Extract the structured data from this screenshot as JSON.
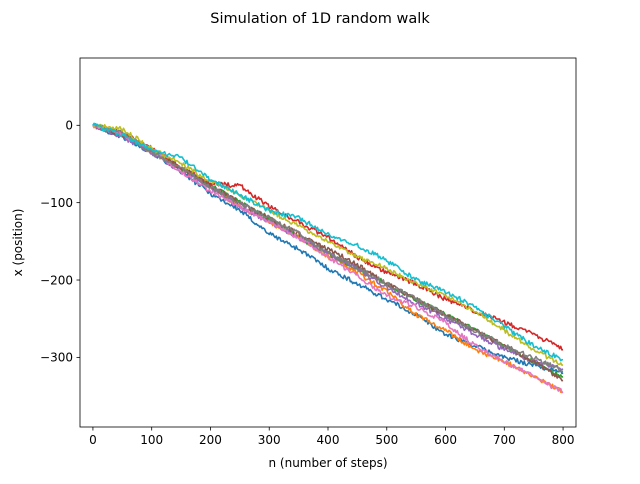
{
  "chart_data": {
    "type": "line",
    "title": "Simulation of 1D random walk",
    "xlabel": "n (number of steps)",
    "ylabel": "x (position)",
    "xlim": [
      -22,
      822
    ],
    "ylim": [
      -390,
      87
    ],
    "xticks": [
      0,
      100,
      200,
      300,
      400,
      500,
      600,
      700,
      800
    ],
    "yticks": [
      0,
      -100,
      -200,
      -300
    ],
    "xtick_labels": [
      "0",
      "100",
      "200",
      "300",
      "400",
      "500",
      "600",
      "700",
      "800"
    ],
    "ytick_labels": [
      "0",
      "−100",
      "−200",
      "−300"
    ],
    "grid": false,
    "legend": "none",
    "series": [
      {
        "color": "#1f77b4",
        "points": [
          [
            0,
            0
          ],
          [
            50,
            -15
          ],
          [
            100,
            -35
          ],
          [
            150,
            -60
          ],
          [
            200,
            -88
          ],
          [
            250,
            -110
          ],
          [
            300,
            -140
          ],
          [
            350,
            -160
          ],
          [
            400,
            -185
          ],
          [
            450,
            -205
          ],
          [
            500,
            -225
          ],
          [
            550,
            -245
          ],
          [
            600,
            -270
          ],
          [
            650,
            -285
          ],
          [
            700,
            -300
          ],
          [
            750,
            -310
          ],
          [
            800,
            -320
          ]
        ]
      },
      {
        "color": "#ff7f0e",
        "points": [
          [
            0,
            0
          ],
          [
            50,
            -10
          ],
          [
            100,
            -35
          ],
          [
            150,
            -55
          ],
          [
            200,
            -80
          ],
          [
            250,
            -105
          ],
          [
            300,
            -125
          ],
          [
            350,
            -145
          ],
          [
            400,
            -170
          ],
          [
            450,
            -190
          ],
          [
            500,
            -215
          ],
          [
            550,
            -245
          ],
          [
            600,
            -265
          ],
          [
            650,
            -290
          ],
          [
            700,
            -305
          ],
          [
            750,
            -325
          ],
          [
            800,
            -345
          ]
        ]
      },
      {
        "color": "#2ca02c",
        "points": [
          [
            0,
            0
          ],
          [
            50,
            -12
          ],
          [
            100,
            -32
          ],
          [
            150,
            -55
          ],
          [
            200,
            -78
          ],
          [
            250,
            -100
          ],
          [
            300,
            -120
          ],
          [
            350,
            -145
          ],
          [
            400,
            -165
          ],
          [
            450,
            -185
          ],
          [
            500,
            -205
          ],
          [
            550,
            -225
          ],
          [
            600,
            -245
          ],
          [
            650,
            -265
          ],
          [
            700,
            -285
          ],
          [
            750,
            -305
          ],
          [
            800,
            -325
          ]
        ]
      },
      {
        "color": "#d62728",
        "points": [
          [
            0,
            0
          ],
          [
            50,
            -10
          ],
          [
            100,
            -30
          ],
          [
            150,
            -55
          ],
          [
            200,
            -75
          ],
          [
            250,
            -78
          ],
          [
            300,
            -105
          ],
          [
            350,
            -125
          ],
          [
            400,
            -145
          ],
          [
            450,
            -170
          ],
          [
            500,
            -190
          ],
          [
            550,
            -205
          ],
          [
            600,
            -225
          ],
          [
            650,
            -240
          ],
          [
            700,
            -255
          ],
          [
            750,
            -270
          ],
          [
            800,
            -290
          ]
        ]
      },
      {
        "color": "#9467bd",
        "points": [
          [
            0,
            0
          ],
          [
            50,
            -15
          ],
          [
            100,
            -35
          ],
          [
            150,
            -60
          ],
          [
            200,
            -80
          ],
          [
            250,
            -105
          ],
          [
            300,
            -125
          ],
          [
            350,
            -145
          ],
          [
            400,
            -165
          ],
          [
            450,
            -185
          ],
          [
            500,
            -210
          ],
          [
            550,
            -230
          ],
          [
            600,
            -250
          ],
          [
            650,
            -270
          ],
          [
            700,
            -290
          ],
          [
            750,
            -305
          ],
          [
            800,
            -315
          ]
        ]
      },
      {
        "color": "#8c564b",
        "points": [
          [
            0,
            0
          ],
          [
            50,
            -12
          ],
          [
            100,
            -30
          ],
          [
            150,
            -55
          ],
          [
            200,
            -78
          ],
          [
            250,
            -100
          ],
          [
            300,
            -120
          ],
          [
            350,
            -140
          ],
          [
            400,
            -160
          ],
          [
            450,
            -180
          ],
          [
            500,
            -205
          ],
          [
            550,
            -225
          ],
          [
            600,
            -245
          ],
          [
            650,
            -265
          ],
          [
            700,
            -285
          ],
          [
            750,
            -305
          ],
          [
            800,
            -330
          ]
        ]
      },
      {
        "color": "#e377c2",
        "points": [
          [
            0,
            0
          ],
          [
            50,
            -12
          ],
          [
            100,
            -32
          ],
          [
            150,
            -60
          ],
          [
            200,
            -85
          ],
          [
            250,
            -105
          ],
          [
            300,
            -125
          ],
          [
            350,
            -145
          ],
          [
            400,
            -170
          ],
          [
            450,
            -195
          ],
          [
            500,
            -220
          ],
          [
            550,
            -235
          ],
          [
            600,
            -255
          ],
          [
            650,
            -285
          ],
          [
            700,
            -305
          ],
          [
            750,
            -325
          ],
          [
            800,
            -345
          ]
        ]
      },
      {
        "color": "#7f7f7f",
        "points": [
          [
            0,
            0
          ],
          [
            50,
            -10
          ],
          [
            100,
            -35
          ],
          [
            150,
            -55
          ],
          [
            200,
            -80
          ],
          [
            250,
            -100
          ],
          [
            300,
            -120
          ],
          [
            350,
            -140
          ],
          [
            400,
            -165
          ],
          [
            450,
            -185
          ],
          [
            500,
            -205
          ],
          [
            550,
            -225
          ],
          [
            600,
            -245
          ],
          [
            650,
            -265
          ],
          [
            700,
            -285
          ],
          [
            750,
            -300
          ],
          [
            800,
            -318
          ]
        ]
      },
      {
        "color": "#bcbd22",
        "points": [
          [
            0,
            0
          ],
          [
            50,
            -5
          ],
          [
            100,
            -30
          ],
          [
            150,
            -50
          ],
          [
            200,
            -72
          ],
          [
            250,
            -90
          ],
          [
            300,
            -110
          ],
          [
            350,
            -130
          ],
          [
            400,
            -150
          ],
          [
            450,
            -170
          ],
          [
            500,
            -185
          ],
          [
            550,
            -205
          ],
          [
            600,
            -220
          ],
          [
            650,
            -240
          ],
          [
            700,
            -265
          ],
          [
            750,
            -290
          ],
          [
            800,
            -310
          ]
        ]
      },
      {
        "color": "#17becf",
        "points": [
          [
            0,
            0
          ],
          [
            50,
            -12
          ],
          [
            100,
            -32
          ],
          [
            150,
            -42
          ],
          [
            200,
            -70
          ],
          [
            250,
            -90
          ],
          [
            300,
            -110
          ],
          [
            350,
            -120
          ],
          [
            400,
            -140
          ],
          [
            450,
            -155
          ],
          [
            500,
            -175
          ],
          [
            550,
            -200
          ],
          [
            600,
            -215
          ],
          [
            650,
            -235
          ],
          [
            700,
            -260
          ],
          [
            750,
            -285
          ],
          [
            800,
            -303
          ]
        ]
      }
    ]
  }
}
